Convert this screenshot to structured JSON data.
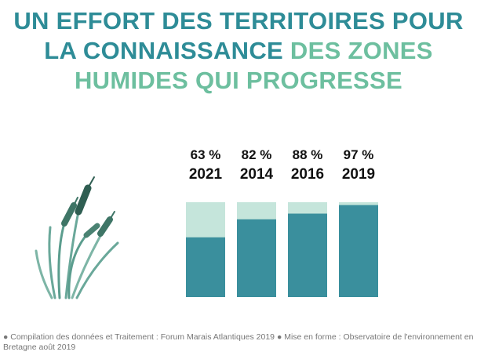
{
  "chart_data": {
    "type": "bar",
    "title": [
      {
        "text": "UN EFFORT DES TERRITOIRES POUR LA CONNAISSANCE",
        "color": "#2e8c97"
      },
      {
        "text": "DES ZONES HUMIDES QUI PROGRESSE",
        "color": "#6dbf9f"
      }
    ],
    "categories": [
      "2021",
      "2014",
      "2016",
      "2019"
    ],
    "values": [
      63,
      82,
      88,
      97
    ],
    "value_labels": [
      "63 %",
      "82 %",
      "88 %",
      "97 %"
    ],
    "color": "#3a8f9d",
    "track_color": "#c5e5db",
    "ylim": [
      0,
      100
    ],
    "note": "● Compilation des données et Traitement : Forum Marais Atlantiques 2019 ● Mise en forme : Observatoire de l'environnement en Bretagne août 2019"
  }
}
